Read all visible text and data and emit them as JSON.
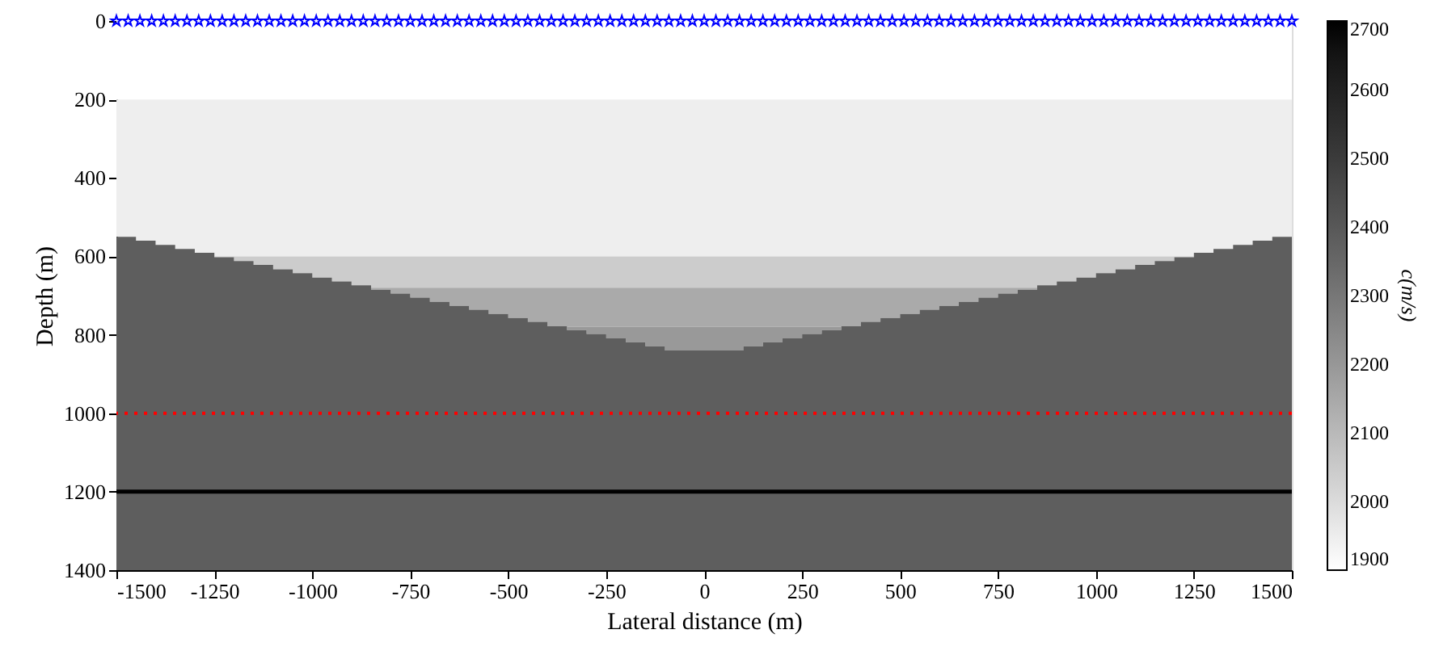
{
  "chart_data": {
    "type": "area",
    "stacked": true,
    "xlabel": "Lateral distance (m)",
    "ylabel": "Depth (m)",
    "clabel": "c(m/s)",
    "xlim": [
      -1500,
      1500
    ],
    "xticks": [
      -1500,
      -1250,
      -1000,
      -750,
      -500,
      -250,
      0,
      250,
      500,
      750,
      1000,
      1250,
      1500
    ],
    "ylim": [
      1400,
      0
    ],
    "yticks": [
      0,
      200,
      400,
      600,
      800,
      1000,
      1200,
      1400
    ],
    "clim": [
      1900,
      2700
    ],
    "cticks": [
      1900,
      2000,
      2100,
      2200,
      2300,
      2400,
      2500,
      2600,
      2700
    ],
    "grid": false,
    "x": [
      -1500,
      -1450,
      -1400,
      -1350,
      -1300,
      -1250,
      -1200,
      -1150,
      -1100,
      -1050,
      -1000,
      -950,
      -900,
      -850,
      -800,
      -750,
      -700,
      -650,
      -600,
      -550,
      -500,
      -450,
      -400,
      -350,
      -300,
      -250,
      -200,
      -150,
      -100,
      -50,
      0,
      50,
      100,
      150,
      200,
      250,
      300,
      350,
      400,
      450,
      500,
      550,
      600,
      650,
      700,
      750,
      800,
      850,
      900,
      950,
      1000,
      1050,
      1100,
      1150,
      1200,
      1250,
      1300,
      1350,
      1400,
      1450,
      1500
    ],
    "series": [
      {
        "color": "#ffffff",
        "values": [
          200,
          200,
          200,
          200,
          200,
          200,
          200,
          200,
          200,
          200,
          200,
          200,
          200,
          200,
          200,
          200,
          200,
          200,
          200,
          200,
          200,
          200,
          200,
          200,
          200,
          200,
          200,
          200,
          200,
          200,
          200,
          200,
          200,
          200,
          200,
          200,
          200,
          200,
          200,
          200,
          200,
          200,
          200,
          200,
          200,
          200,
          200,
          200,
          200,
          200,
          200,
          200,
          200,
          200,
          200,
          200,
          200,
          200,
          200,
          200,
          200
        ]
      },
      {
        "color": "#eeeeee",
        "values": [
          350,
          360,
          371,
          381,
          391,
          400,
          400,
          400,
          400,
          400,
          400,
          400,
          400,
          400,
          400,
          400,
          400,
          400,
          400,
          400,
          400,
          400,
          400,
          400,
          400,
          400,
          400,
          400,
          400,
          400,
          400,
          400,
          400,
          400,
          400,
          400,
          400,
          400,
          400,
          400,
          400,
          400,
          400,
          400,
          400,
          400,
          400,
          400,
          400,
          400,
          400,
          400,
          400,
          400,
          400,
          391,
          381,
          371,
          360,
          350,
          350
        ]
      },
      {
        "color": "#cccccc",
        "values": [
          0,
          0,
          0,
          0,
          0,
          2,
          12,
          22,
          33,
          43,
          54,
          64,
          74,
          80,
          80,
          80,
          80,
          80,
          80,
          80,
          80,
          80,
          80,
          80,
          80,
          80,
          80,
          80,
          80,
          80,
          80,
          80,
          80,
          80,
          80,
          80,
          80,
          80,
          80,
          80,
          80,
          80,
          80,
          80,
          80,
          80,
          80,
          74,
          64,
          54,
          43,
          33,
          22,
          12,
          2,
          0,
          0,
          0,
          0,
          0,
          0
        ]
      },
      {
        "color": "#aaaaaa",
        "values": [
          0,
          0,
          0,
          0,
          0,
          0,
          0,
          0,
          0,
          0,
          0,
          0,
          0,
          5,
          15,
          25,
          36,
          46,
          56,
          67,
          77,
          87,
          98,
          100,
          100,
          100,
          100,
          100,
          100,
          100,
          100,
          100,
          100,
          100,
          100,
          100,
          100,
          98,
          87,
          77,
          67,
          56,
          46,
          36,
          25,
          15,
          5,
          0,
          0,
          0,
          0,
          0,
          0,
          0,
          0,
          0,
          0,
          0,
          0,
          0,
          0
        ]
      },
      {
        "color": "#999999",
        "values": [
          0,
          0,
          0,
          0,
          0,
          0,
          0,
          0,
          0,
          0,
          0,
          0,
          0,
          0,
          0,
          0,
          0,
          0,
          0,
          0,
          0,
          0,
          0,
          8,
          18,
          29,
          39,
          49,
          60,
          60,
          60,
          60,
          49,
          39,
          29,
          18,
          8,
          0,
          0,
          0,
          0,
          0,
          0,
          0,
          0,
          0,
          0,
          0,
          0,
          0,
          0,
          0,
          0,
          0,
          0,
          0,
          0,
          0,
          0,
          0,
          0
        ]
      },
      {
        "color": "#5e5e5e",
        "values": [
          850,
          840,
          829,
          819,
          809,
          798,
          788,
          778,
          767,
          757,
          746,
          736,
          726,
          715,
          705,
          695,
          684,
          674,
          664,
          653,
          643,
          633,
          622,
          612,
          602,
          591,
          581,
          571,
          560,
          560,
          560,
          560,
          571,
          581,
          591,
          602,
          612,
          622,
          633,
          643,
          653,
          664,
          674,
          684,
          695,
          705,
          715,
          726,
          736,
          746,
          757,
          767,
          778,
          788,
          798,
          809,
          819,
          829,
          840,
          850,
          850
        ]
      },
      {
        "type": "scatter",
        "color": "#0000ff",
        "marker": "star",
        "x": [
          -1500,
          -1470,
          -1440,
          -1410,
          -1380,
          -1350,
          -1320,
          -1290,
          -1260,
          -1230,
          -1200,
          -1170,
          -1140,
          -1110,
          -1080,
          -1050,
          -1020,
          -990,
          -960,
          -930,
          -900,
          -870,
          -840,
          -810,
          -780,
          -750,
          -720,
          -690,
          -660,
          -630,
          -600,
          -570,
          -540,
          -510,
          -480,
          -450,
          -420,
          -390,
          -360,
          -330,
          -300,
          -270,
          -240,
          -210,
          -180,
          -150,
          -120,
          -90,
          -60,
          -30,
          0,
          30,
          60,
          90,
          120,
          150,
          180,
          210,
          240,
          270,
          300,
          330,
          360,
          390,
          420,
          450,
          480,
          510,
          540,
          570,
          600,
          630,
          660,
          690,
          720,
          750,
          780,
          810,
          840,
          870,
          900,
          930,
          960,
          990,
          1020,
          1050,
          1080,
          1110,
          1140,
          1170,
          1200,
          1230,
          1260,
          1290,
          1320,
          1350,
          1380,
          1410,
          1440,
          1470,
          1500
        ],
        "values": [
          0,
          0,
          0,
          0,
          0,
          0,
          0,
          0,
          0,
          0,
          0,
          0,
          0,
          0,
          0,
          0,
          0,
          0,
          0,
          0,
          0,
          0,
          0,
          0,
          0,
          0,
          0,
          0,
          0,
          0,
          0,
          0,
          0,
          0,
          0,
          0,
          0,
          0,
          0,
          0,
          0,
          0,
          0,
          0,
          0,
          0,
          0,
          0,
          0,
          0,
          0,
          0,
          0,
          0,
          0,
          0,
          0,
          0,
          0,
          0,
          0,
          0,
          0,
          0,
          0,
          0,
          0,
          0,
          0,
          0,
          0,
          0,
          0,
          0,
          0,
          0,
          0,
          0,
          0,
          0,
          0,
          0,
          0,
          0,
          0,
          0,
          0,
          0,
          0,
          0,
          0,
          0,
          0,
          0,
          0,
          0,
          0,
          0,
          0,
          0,
          0
        ]
      }
    ],
    "ref_lines": [
      {
        "axis": "y",
        "value": 1000,
        "color": "#ff0000",
        "line_style": "dotted"
      },
      {
        "axis": "y",
        "value": 1200,
        "color": "#000000",
        "line_style": "solid"
      }
    ]
  }
}
